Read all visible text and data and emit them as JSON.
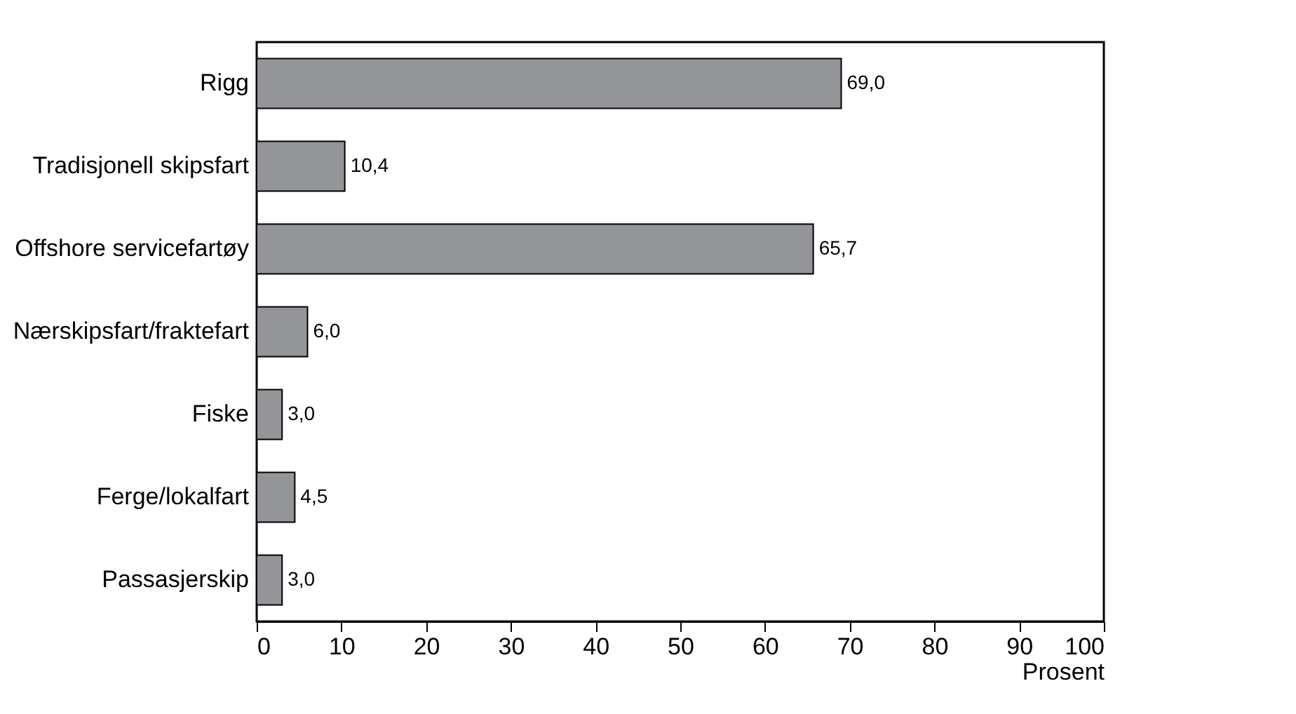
{
  "chart_data": {
    "type": "bar",
    "orientation": "horizontal",
    "xlabel": "Prosent",
    "categories": [
      "Rigg",
      "Tradisjonell skipsfart",
      "Offshore servicefartøy",
      "Nærskipsfart/fraktefart",
      "Fiske",
      "Ferge/lokalfart",
      "Passasjerskip"
    ],
    "values": [
      69.0,
      10.4,
      65.7,
      6.0,
      3.0,
      4.5,
      3.0
    ],
    "value_labels": [
      "69,0",
      "10,4",
      "65,7",
      "6,0",
      "3,0",
      "4,5",
      "3,0"
    ],
    "color": "#939598",
    "xlim": [
      0,
      100
    ],
    "xticks": [
      0,
      10,
      20,
      30,
      40,
      50,
      60,
      70,
      80,
      90,
      100
    ]
  }
}
